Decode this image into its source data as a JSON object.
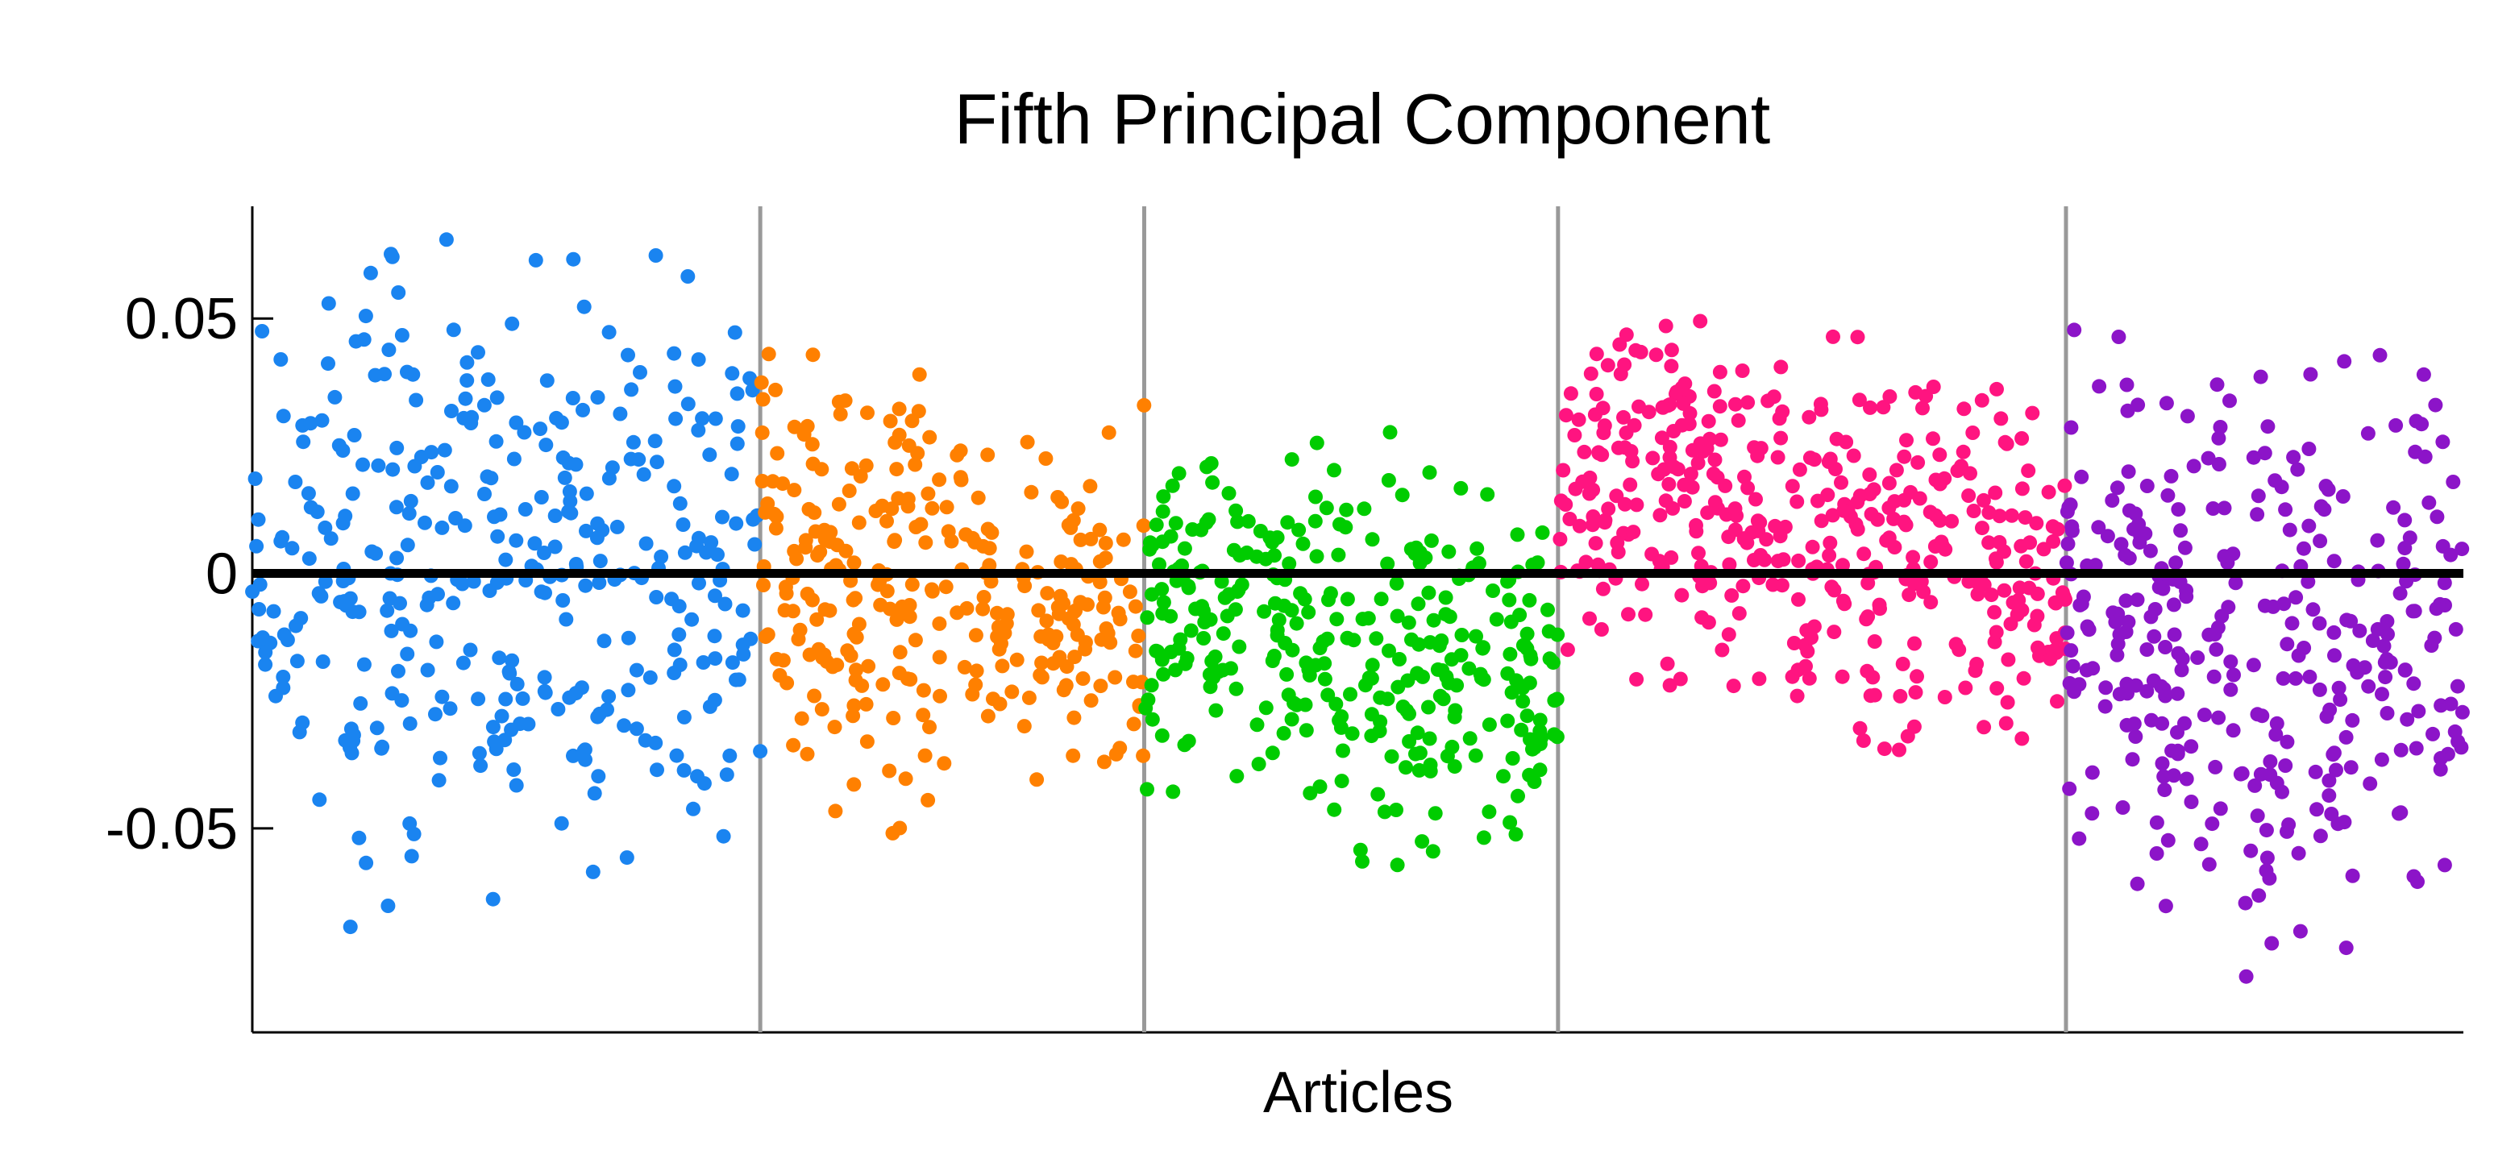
{
  "chart_data": {
    "type": "scatter",
    "title": "Fifth Principal Component",
    "xlabel": "Articles",
    "ylabel": "",
    "ylim": [
      -0.09,
      0.072
    ],
    "y_ticks": [
      {
        "value": 0.05,
        "label": "0.05"
      },
      {
        "value": 0,
        "label": "0"
      },
      {
        "value": -0.05,
        "label": "-0.05"
      }
    ],
    "x_range": [
      0,
      1480
    ],
    "group_boundaries": [
      340,
      597,
      874,
      1214
    ],
    "reference_line_y": 0,
    "grid": false,
    "series": [
      {
        "color": "#1a84f0",
        "x_range": [
          0,
          340
        ],
        "count": 360,
        "envelope": [
          {
            "x": 0,
            "lo": -0.05,
            "hi": 0.056
          },
          {
            "x": 85,
            "lo": -0.075,
            "hi": 0.066
          },
          {
            "x": 170,
            "lo": -0.064,
            "hi": 0.065
          },
          {
            "x": 255,
            "lo": -0.056,
            "hi": 0.062
          },
          {
            "x": 340,
            "lo": -0.05,
            "hi": 0.064
          }
        ]
      },
      {
        "color": "#ff8000",
        "x_range": [
          340,
          597
        ],
        "count": 300,
        "envelope": [
          {
            "x": 340,
            "lo": -0.037,
            "hi": 0.052
          },
          {
            "x": 410,
            "lo": -0.055,
            "hi": 0.038
          },
          {
            "x": 470,
            "lo": -0.042,
            "hi": 0.048
          },
          {
            "x": 540,
            "lo": -0.04,
            "hi": 0.02
          },
          {
            "x": 597,
            "lo": -0.052,
            "hi": 0.033
          }
        ]
      },
      {
        "color": "#00cc00",
        "x_range": [
          597,
          874
        ],
        "count": 330,
        "envelope": [
          {
            "x": 597,
            "lo": -0.045,
            "hi": 0.025
          },
          {
            "x": 700,
            "lo": -0.04,
            "hi": 0.029
          },
          {
            "x": 760,
            "lo": -0.063,
            "hi": 0.028
          },
          {
            "x": 820,
            "lo": -0.052,
            "hi": 0.016
          },
          {
            "x": 874,
            "lo": -0.058,
            "hi": 0.012
          }
        ]
      },
      {
        "color": "#ff1480",
        "x_range": [
          874,
          1214
        ],
        "count": 420,
        "envelope": [
          {
            "x": 874,
            "lo": -0.018,
            "hi": 0.052
          },
          {
            "x": 950,
            "lo": -0.022,
            "hi": 0.054
          },
          {
            "x": 1050,
            "lo": -0.034,
            "hi": 0.048
          },
          {
            "x": 1140,
            "lo": -0.036,
            "hi": 0.042
          },
          {
            "x": 1214,
            "lo": -0.03,
            "hi": 0.03
          }
        ]
      },
      {
        "color": "#8c14c8",
        "x_range": [
          1214,
          1480
        ],
        "count": 330,
        "envelope": [
          {
            "x": 1214,
            "lo": -0.05,
            "hi": 0.048
          },
          {
            "x": 1280,
            "lo": -0.065,
            "hi": 0.045
          },
          {
            "x": 1350,
            "lo": -0.083,
            "hi": 0.038
          },
          {
            "x": 1420,
            "lo": -0.07,
            "hi": 0.043
          },
          {
            "x": 1480,
            "lo": -0.065,
            "hi": 0.04
          }
        ]
      }
    ]
  }
}
